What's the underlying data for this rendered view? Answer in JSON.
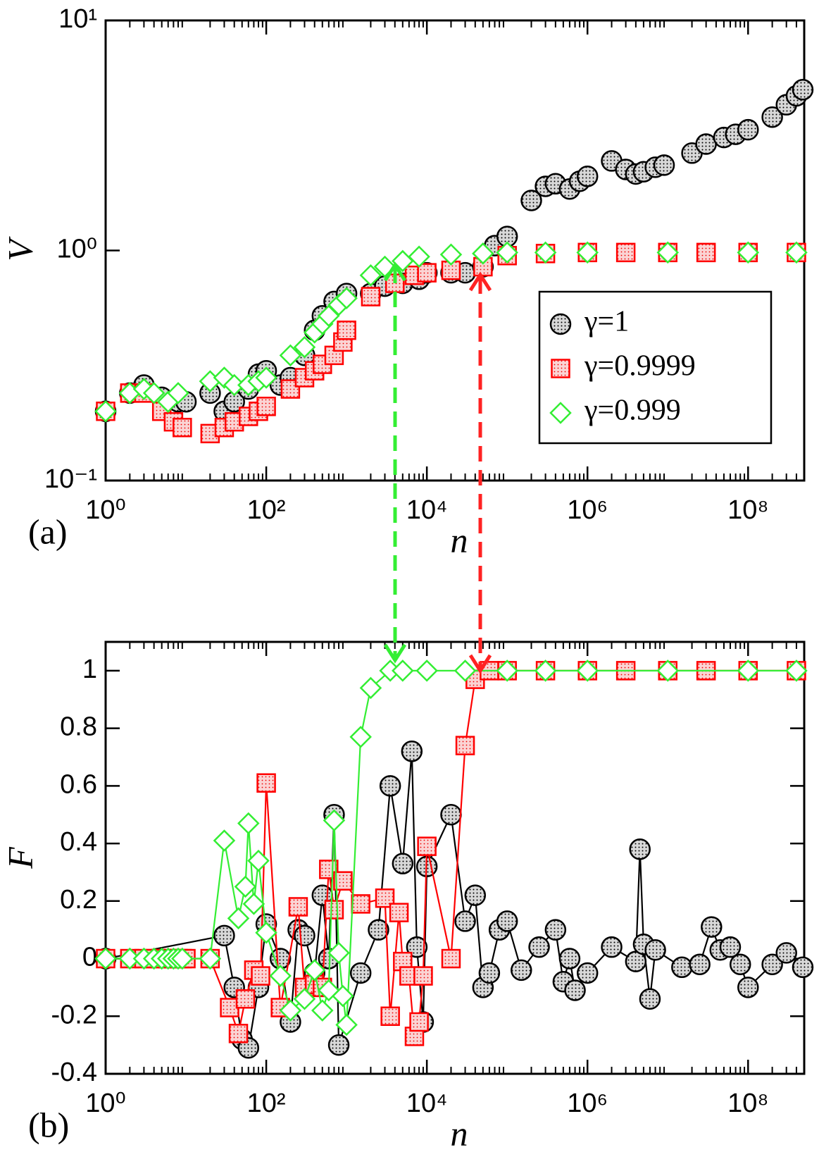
{
  "chart_data": [
    {
      "type": "scatter",
      "xscale": "log",
      "yscale": "log",
      "xlim": [
        1,
        500000000
      ],
      "ylim": [
        0.1,
        10
      ],
      "xticks": [
        {
          "value": 1,
          "label": "10⁰"
        },
        {
          "value": 100,
          "label": "10²"
        },
        {
          "value": 10000,
          "label": "10⁴"
        },
        {
          "value": 1000000,
          "label": "10⁶"
        },
        {
          "value": 100000000,
          "label": "10⁸"
        }
      ],
      "yticks": [
        {
          "value": 0.1,
          "label": "10⁻¹"
        },
        {
          "value": 1,
          "label": "10⁰"
        },
        {
          "value": 10,
          "label": "10¹"
        }
      ],
      "xlabel": "n",
      "ylabel": "V",
      "panel_label": "(a)",
      "legend": "lower right",
      "series": [
        {
          "name": "γ=1",
          "color": "#000000",
          "marker": "circle",
          "x": [
            1,
            2,
            3,
            5,
            8,
            10,
            20,
            30,
            40,
            60,
            80,
            100,
            150,
            200,
            300,
            400,
            500,
            700,
            1000,
            2000,
            3000,
            5000,
            8000,
            10000,
            20000,
            30000,
            50000,
            70000,
            100000,
            200000,
            300000,
            400000,
            600000,
            800000,
            1000000,
            2000000,
            3000000,
            4000000,
            5000000,
            7000000,
            9000000,
            20000000,
            30000000,
            50000000,
            70000000,
            100000000,
            200000000,
            300000000,
            400000000,
            480000000
          ],
          "values": [
            0.2,
            0.24,
            0.26,
            0.23,
            0.22,
            0.22,
            0.24,
            0.2,
            0.22,
            0.25,
            0.29,
            0.3,
            0.26,
            0.28,
            0.35,
            0.45,
            0.52,
            0.6,
            0.65,
            0.65,
            0.7,
            0.72,
            0.75,
            0.8,
            0.8,
            0.8,
            0.85,
            1.05,
            1.15,
            1.65,
            1.9,
            1.95,
            1.85,
            2.0,
            2.1,
            2.45,
            2.25,
            2.15,
            2.2,
            2.3,
            2.35,
            2.65,
            2.9,
            3.1,
            3.2,
            3.35,
            3.8,
            4.3,
            4.7,
            5.0
          ]
        },
        {
          "name": "γ=0.9999",
          "color": "#ff0000",
          "marker": "square",
          "x": [
            1,
            2,
            3,
            5,
            7,
            9,
            20,
            30,
            40,
            60,
            80,
            100,
            200,
            300,
            400,
            500,
            700,
            900,
            1000,
            2000,
            4000,
            7000,
            10000,
            20000,
            50000,
            100000,
            300000,
            1000000,
            3000000,
            10000000,
            30000000,
            100000000,
            400000000
          ],
          "values": [
            0.2,
            0.24,
            0.24,
            0.2,
            0.18,
            0.17,
            0.16,
            0.17,
            0.18,
            0.19,
            0.2,
            0.21,
            0.25,
            0.28,
            0.3,
            0.32,
            0.35,
            0.4,
            0.45,
            0.63,
            0.72,
            0.78,
            0.8,
            0.82,
            0.85,
            0.95,
            0.97,
            0.98,
            0.98,
            0.98,
            0.98,
            0.98,
            0.98
          ]
        },
        {
          "name": "γ=0.999",
          "color": "#33ee33",
          "marker": "diamond",
          "x": [
            1,
            2,
            3,
            4,
            6,
            8,
            20,
            30,
            40,
            60,
            80,
            100,
            200,
            300,
            400,
            500,
            600,
            800,
            1000,
            2000,
            3000,
            5000,
            8000,
            20000,
            50000,
            100000,
            300000,
            1000000,
            10000000,
            100000000,
            400000000
          ],
          "values": [
            0.2,
            0.24,
            0.25,
            0.24,
            0.22,
            0.24,
            0.27,
            0.28,
            0.26,
            0.26,
            0.27,
            0.28,
            0.35,
            0.38,
            0.44,
            0.48,
            0.52,
            0.58,
            0.62,
            0.78,
            0.85,
            0.9,
            0.94,
            0.96,
            0.97,
            0.98,
            0.98,
            0.98,
            0.98,
            0.98,
            0.98
          ]
        }
      ]
    },
    {
      "type": "line",
      "xscale": "log",
      "xlim": [
        1,
        500000000
      ],
      "ylim": [
        -0.4,
        1.1
      ],
      "xticks": [
        {
          "value": 1,
          "label": "10⁰"
        },
        {
          "value": 100,
          "label": "10²"
        },
        {
          "value": 10000,
          "label": "10⁴"
        },
        {
          "value": 1000000,
          "label": "10⁶"
        },
        {
          "value": 100000000,
          "label": "10⁸"
        }
      ],
      "yticks": [
        -0.4,
        -0.2,
        0,
        0.2,
        0.4,
        0.6,
        0.8,
        1
      ],
      "xlabel": "n",
      "ylabel": "F",
      "panel_label": "(b)",
      "series": [
        {
          "color": "#000000",
          "marker": "circle",
          "x": [
            1,
            30,
            40,
            50,
            60,
            80,
            100,
            150,
            200,
            250,
            300,
            400,
            500,
            600,
            700,
            800,
            1500,
            2500,
            3500,
            5000,
            6500,
            7500,
            9000,
            10000,
            20000,
            30000,
            40000,
            50000,
            60000,
            80000,
            100000,
            150000,
            250000,
            400000,
            500000,
            600000,
            700000,
            1000000,
            2000000,
            4000000,
            4500000,
            5000000,
            6000000,
            7000000,
            15000000,
            25000000,
            35000000,
            45000000,
            60000000,
            80000000,
            100000000,
            200000000,
            300000000,
            480000000
          ],
          "values": [
            0,
            0.08,
            -0.1,
            -0.28,
            -0.31,
            -0.1,
            0.12,
            0,
            -0.22,
            0.1,
            0.08,
            -0.05,
            0.22,
            0,
            0.5,
            -0.3,
            -0.05,
            0.1,
            0.6,
            0.33,
            0.72,
            0.04,
            -0.22,
            0.32,
            0.5,
            0.13,
            0.22,
            -0.1,
            -0.05,
            0.1,
            0.13,
            -0.04,
            0.04,
            0.1,
            -0.08,
            0,
            -0.11,
            -0.05,
            0.04,
            -0.01,
            0.38,
            0.05,
            -0.14,
            0.03,
            -0.03,
            -0.02,
            0.11,
            0.03,
            0.04,
            -0.02,
            -0.1,
            -0.02,
            0.02,
            -0.03
          ]
        },
        {
          "color": "#ff0000",
          "marker": "square",
          "x": [
            1,
            2,
            3,
            4,
            5,
            6,
            7,
            8,
            9,
            10,
            20,
            35,
            45,
            55,
            70,
            85,
            100,
            150,
            250,
            300,
            400,
            500,
            600,
            700,
            900,
            1500,
            3000,
            3500,
            4500,
            5000,
            6000,
            7000,
            8000,
            9000,
            10000,
            20000,
            30000,
            40000,
            60000,
            100000,
            300000,
            1000000,
            3000000,
            10000000,
            30000000,
            100000000,
            400000000
          ],
          "values": [
            0,
            0,
            0,
            0,
            0,
            0,
            0,
            0,
            0,
            0,
            0,
            -0.17,
            -0.26,
            -0.14,
            -0.04,
            -0.06,
            0.61,
            -0.17,
            0.18,
            -0.1,
            -0.09,
            -0.1,
            0.31,
            0.17,
            0.27,
            0.19,
            0.21,
            -0.2,
            0.16,
            -0.01,
            -0.06,
            -0.27,
            -0.22,
            -0.06,
            0.39,
            0,
            0.74,
            0.97,
            1,
            1,
            1,
            1,
            1,
            1,
            1,
            1,
            1
          ]
        },
        {
          "color": "#33ee33",
          "marker": "diamond",
          "x": [
            1,
            2,
            3,
            4,
            5,
            6,
            7,
            8,
            9,
            20,
            30,
            45,
            55,
            60,
            70,
            80,
            100,
            150,
            200,
            300,
            400,
            500,
            600,
            700,
            800,
            900,
            1000,
            1500,
            2000,
            3500,
            5000,
            10000,
            30000,
            100000,
            300000,
            1000000,
            10000000,
            100000000,
            400000000
          ],
          "values": [
            0,
            0,
            0,
            0,
            0,
            0,
            0,
            0,
            0,
            0,
            0.41,
            0.14,
            0.25,
            0.47,
            0.19,
            0.34,
            0.09,
            -0.06,
            -0.18,
            -0.14,
            -0.04,
            -0.18,
            -0.11,
            0.48,
            0.02,
            -0.13,
            -0.23,
            0.77,
            0.94,
            1,
            1,
            1,
            1,
            1,
            1,
            1,
            1,
            1,
            1
          ]
        }
      ]
    }
  ]
}
